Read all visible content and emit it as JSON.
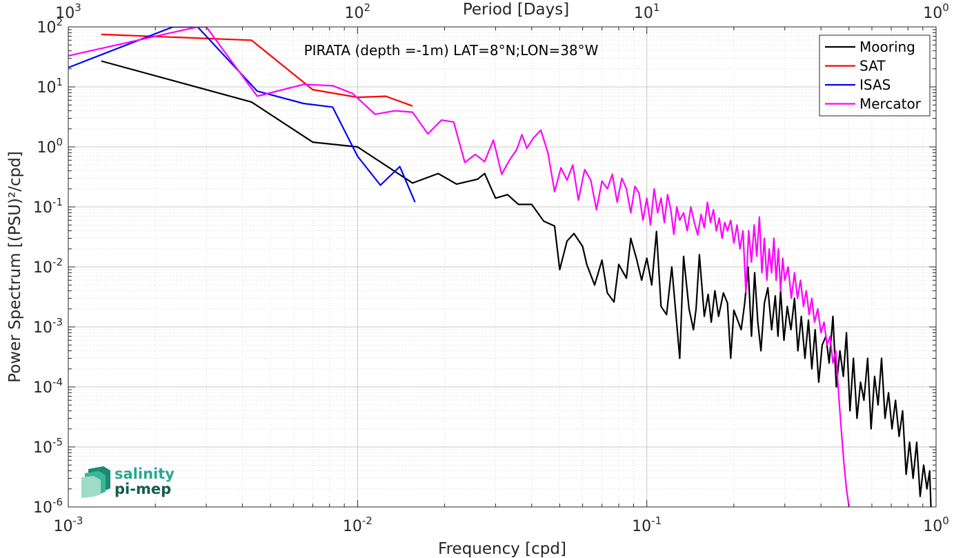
{
  "chart_data": {
    "type": "line",
    "title": "PIRATA (depth =-1m) LAT=8°N;LON=38°W",
    "xlabel": "Frequency [cpd]",
    "ylabel": "Power Spectrum [(PSU)²/cpd]",
    "top_xlabel": "Period [Days]",
    "x_scale": "log",
    "y_scale": "log",
    "xlim": [
      0.001,
      1
    ],
    "ylim": [
      1e-06,
      100
    ],
    "grid": true,
    "legend_position": "top-right",
    "x_ticks": [
      {
        "value": 0.001,
        "base": "10",
        "exp": "-3"
      },
      {
        "value": 0.01,
        "base": "10",
        "exp": "-2"
      },
      {
        "value": 0.1,
        "base": "10",
        "exp": "-1"
      },
      {
        "value": 1,
        "base": "10",
        "exp": "0"
      }
    ],
    "top_ticks": [
      {
        "value": 0.001,
        "base": "10",
        "exp": "3"
      },
      {
        "value": 0.01,
        "base": "10",
        "exp": "2"
      },
      {
        "value": 0.1,
        "base": "10",
        "exp": "1"
      },
      {
        "value": 1,
        "base": "10",
        "exp": "0"
      }
    ],
    "y_ticks": [
      {
        "value": 100,
        "base": "10",
        "exp": "2"
      },
      {
        "value": 10,
        "base": "10",
        "exp": "1"
      },
      {
        "value": 1,
        "base": "10",
        "exp": "0"
      },
      {
        "value": 0.1,
        "base": "10",
        "exp": "-1"
      },
      {
        "value": 0.01,
        "base": "10",
        "exp": "-2"
      },
      {
        "value": 0.001,
        "base": "10",
        "exp": "-3"
      },
      {
        "value": 0.0001,
        "base": "10",
        "exp": "-4"
      },
      {
        "value": 1e-05,
        "base": "10",
        "exp": "-5"
      },
      {
        "value": 1e-06,
        "base": "10",
        "exp": "-6"
      }
    ],
    "series": [
      {
        "name": "Mooring",
        "color": "#000000",
        "points": [
          [
            0.0013,
            27
          ],
          [
            0.0043,
            5.6
          ],
          [
            0.007,
            1.2
          ],
          [
            0.01,
            1.0
          ],
          [
            0.0155,
            0.25
          ],
          [
            0.019,
            0.36
          ],
          [
            0.022,
            0.24
          ],
          [
            0.026,
            0.29
          ],
          [
            0.0275,
            0.36
          ],
          [
            0.03,
            0.14
          ],
          [
            0.033,
            0.16
          ],
          [
            0.036,
            0.11
          ],
          [
            0.04,
            0.11
          ],
          [
            0.044,
            0.058
          ],
          [
            0.048,
            0.048
          ],
          [
            0.05,
            0.009
          ],
          [
            0.053,
            0.027
          ],
          [
            0.056,
            0.036
          ],
          [
            0.06,
            0.022
          ],
          [
            0.062,
            0.011
          ],
          [
            0.066,
            0.005
          ],
          [
            0.07,
            0.013
          ],
          [
            0.073,
            0.0037
          ],
          [
            0.077,
            0.0026
          ],
          [
            0.08,
            0.011
          ],
          [
            0.085,
            0.0065
          ],
          [
            0.088,
            0.03
          ],
          [
            0.092,
            0.014
          ],
          [
            0.096,
            0.006
          ],
          [
            0.1,
            0.014
          ],
          [
            0.104,
            0.005
          ],
          [
            0.108,
            0.039
          ],
          [
            0.112,
            0.0022
          ],
          [
            0.117,
            0.0016
          ],
          [
            0.122,
            0.01
          ],
          [
            0.13,
            0.0003
          ],
          [
            0.134,
            0.015
          ],
          [
            0.14,
            0.002
          ],
          [
            0.145,
            0.0009
          ],
          [
            0.148,
            0.002
          ],
          [
            0.152,
            0.016
          ],
          [
            0.158,
            0.0015
          ],
          [
            0.163,
            0.0035
          ],
          [
            0.167,
            0.0012
          ],
          [
            0.172,
            0.004
          ],
          [
            0.177,
            0.0015
          ],
          [
            0.184,
            0.0037
          ],
          [
            0.19,
            0.0025
          ],
          [
            0.195,
            0.0003
          ],
          [
            0.2,
            0.0019
          ],
          [
            0.206,
            0.0013
          ],
          [
            0.212,
            0.0009
          ],
          [
            0.218,
            0.0025
          ],
          [
            0.224,
            0.01
          ],
          [
            0.23,
            0.0007
          ],
          [
            0.236,
            0.008
          ],
          [
            0.242,
            0.0012
          ],
          [
            0.248,
            0.0004
          ],
          [
            0.255,
            0.0025
          ],
          [
            0.262,
            0.0045
          ],
          [
            0.27,
            0.0009
          ],
          [
            0.278,
            0.0033
          ],
          [
            0.284,
            0.0007
          ],
          [
            0.29,
            0.004
          ],
          [
            0.298,
            0.0006
          ],
          [
            0.306,
            0.0022
          ],
          [
            0.315,
            0.0009
          ],
          [
            0.324,
            0.003
          ],
          [
            0.333,
            0.0004
          ],
          [
            0.342,
            0.0015
          ],
          [
            0.352,
            0.0003
          ],
          [
            0.362,
            0.0013
          ],
          [
            0.372,
            0.0002
          ],
          [
            0.382,
            0.0009
          ],
          [
            0.393,
            0.00012
          ],
          [
            0.404,
            0.0005
          ],
          [
            0.416,
            0.0007
          ],
          [
            0.427,
            0.00025
          ],
          [
            0.44,
            0.0015
          ],
          [
            0.452,
            0.0001
          ],
          [
            0.465,
            0.0004
          ],
          [
            0.478,
            0.00015
          ],
          [
            0.49,
            0.0008
          ],
          [
            0.504,
            4e-05
          ],
          [
            0.518,
            0.0003
          ],
          [
            0.533,
            3e-05
          ],
          [
            0.548,
            0.00012
          ],
          [
            0.563,
            6e-05
          ],
          [
            0.58,
            0.0003
          ],
          [
            0.596,
            2e-05
          ],
          [
            0.613,
            0.00015
          ],
          [
            0.63,
            5e-05
          ],
          [
            0.648,
            0.0003
          ],
          [
            0.666,
            3e-05
          ],
          [
            0.685,
            8e-05
          ],
          [
            0.704,
            2e-05
          ],
          [
            0.724,
            6e-05
          ],
          [
            0.745,
            1.5e-05
          ],
          [
            0.766,
            4e-05
          ],
          [
            0.788,
            3.5e-06
          ],
          [
            0.81,
            1.2e-05
          ],
          [
            0.833,
            3e-06
          ],
          [
            0.857,
            1.2e-05
          ],
          [
            0.881,
            1.5e-06
          ],
          [
            0.906,
            5e-06
          ],
          [
            0.93,
            2e-06
          ],
          [
            0.95,
            4e-06
          ],
          [
            0.96,
            1e-06
          ]
        ]
      },
      {
        "name": "SAT",
        "color": "#ff0000",
        "points": [
          [
            0.0013,
            75
          ],
          [
            0.0043,
            60
          ],
          [
            0.007,
            9
          ],
          [
            0.01,
            6.7
          ],
          [
            0.0125,
            7
          ],
          [
            0.0155,
            4.8
          ]
        ]
      },
      {
        "name": "ISAS",
        "color": "#0000ff",
        "points": [
          [
            0.001,
            21
          ],
          [
            0.0023,
            100
          ],
          [
            0.0028,
            100
          ],
          [
            0.0045,
            8.5
          ],
          [
            0.0065,
            5.3
          ],
          [
            0.0082,
            4.6
          ],
          [
            0.01,
            0.7
          ],
          [
            0.012,
            0.23
          ],
          [
            0.014,
            0.47
          ],
          [
            0.0158,
            0.12
          ]
        ]
      },
      {
        "name": "Mercator",
        "color": "#ff00ff",
        "points": [
          [
            0.001,
            33
          ],
          [
            0.0028,
            100
          ],
          [
            0.003,
            100
          ],
          [
            0.0045,
            7
          ],
          [
            0.0065,
            11
          ],
          [
            0.0082,
            10.5
          ],
          [
            0.0096,
            7.8
          ],
          [
            0.0115,
            3.5
          ],
          [
            0.0135,
            4
          ],
          [
            0.0155,
            3.8
          ],
          [
            0.0175,
            1.65
          ],
          [
            0.0195,
            2.8
          ],
          [
            0.0215,
            2.6
          ],
          [
            0.0235,
            0.55
          ],
          [
            0.0255,
            0.75
          ],
          [
            0.0275,
            0.57
          ],
          [
            0.0295,
            1.3
          ],
          [
            0.0315,
            0.35
          ],
          [
            0.0335,
            0.6
          ],
          [
            0.0355,
            0.9
          ],
          [
            0.037,
            1.6
          ],
          [
            0.0385,
            0.95
          ],
          [
            0.0405,
            1.4
          ],
          [
            0.043,
            1.9
          ],
          [
            0.0455,
            0.8
          ],
          [
            0.048,
            0.18
          ],
          [
            0.0505,
            0.45
          ],
          [
            0.053,
            0.28
          ],
          [
            0.0555,
            0.5
          ],
          [
            0.058,
            0.13
          ],
          [
            0.061,
            0.42
          ],
          [
            0.064,
            0.28
          ],
          [
            0.067,
            0.09
          ],
          [
            0.07,
            0.27
          ],
          [
            0.073,
            0.2
          ],
          [
            0.076,
            0.35
          ],
          [
            0.079,
            0.12
          ],
          [
            0.082,
            0.3
          ],
          [
            0.085,
            0.2
          ],
          [
            0.088,
            0.08
          ],
          [
            0.091,
            0.22
          ],
          [
            0.094,
            0.17
          ],
          [
            0.097,
            0.06
          ],
          [
            0.1,
            0.14
          ],
          [
            0.103,
            0.05
          ],
          [
            0.106,
            0.2
          ],
          [
            0.109,
            0.08
          ],
          [
            0.112,
            0.14
          ],
          [
            0.115,
            0.055
          ],
          [
            0.118,
            0.16
          ],
          [
            0.121,
            0.09
          ],
          [
            0.124,
            0.035
          ],
          [
            0.127,
            0.1
          ],
          [
            0.13,
            0.06
          ],
          [
            0.134,
            0.08
          ],
          [
            0.138,
            0.04
          ],
          [
            0.142,
            0.1
          ],
          [
            0.146,
            0.055
          ],
          [
            0.15,
            0.034
          ],
          [
            0.154,
            0.075
          ],
          [
            0.158,
            0.045
          ],
          [
            0.162,
            0.12
          ],
          [
            0.166,
            0.055
          ],
          [
            0.17,
            0.09
          ],
          [
            0.174,
            0.04
          ],
          [
            0.178,
            0.065
          ],
          [
            0.182,
            0.03
          ],
          [
            0.186,
            0.055
          ],
          [
            0.19,
            0.04
          ],
          [
            0.195,
            0.06
          ],
          [
            0.2,
            0.025
          ],
          [
            0.205,
            0.05
          ],
          [
            0.21,
            0.02
          ],
          [
            0.215,
            0.04
          ],
          [
            0.22,
            0.0038
          ],
          [
            0.225,
            0.04
          ],
          [
            0.23,
            0.012
          ],
          [
            0.235,
            0.05
          ],
          [
            0.24,
            0.015
          ],
          [
            0.245,
            0.068
          ],
          [
            0.25,
            0.008
          ],
          [
            0.255,
            0.03
          ],
          [
            0.26,
            0.006
          ],
          [
            0.265,
            0.02
          ],
          [
            0.27,
            0.008
          ],
          [
            0.275,
            0.03
          ],
          [
            0.28,
            0.006
          ],
          [
            0.285,
            0.02
          ],
          [
            0.29,
            0.004
          ],
          [
            0.295,
            0.014
          ],
          [
            0.3,
            0.006
          ],
          [
            0.308,
            0.01
          ],
          [
            0.316,
            0.003
          ],
          [
            0.324,
            0.008
          ],
          [
            0.332,
            0.003
          ],
          [
            0.34,
            0.006
          ],
          [
            0.348,
            0.0022
          ],
          [
            0.356,
            0.004
          ],
          [
            0.364,
            0.0016
          ],
          [
            0.372,
            0.003
          ],
          [
            0.38,
            0.0012
          ],
          [
            0.39,
            0.002
          ],
          [
            0.4,
            0.0008
          ],
          [
            0.41,
            0.0012
          ],
          [
            0.42,
            0.0005
          ],
          [
            0.43,
            0.0007
          ],
          [
            0.44,
            0.00025
          ],
          [
            0.45,
            0.0004
          ],
          [
            0.46,
            8e-05
          ],
          [
            0.47,
            2e-05
          ],
          [
            0.48,
            5.5e-06
          ],
          [
            0.49,
            2e-06
          ],
          [
            0.5,
            1e-06
          ]
        ]
      }
    ],
    "logo": {
      "line1": "salinity",
      "line2": "pi-mep"
    }
  }
}
